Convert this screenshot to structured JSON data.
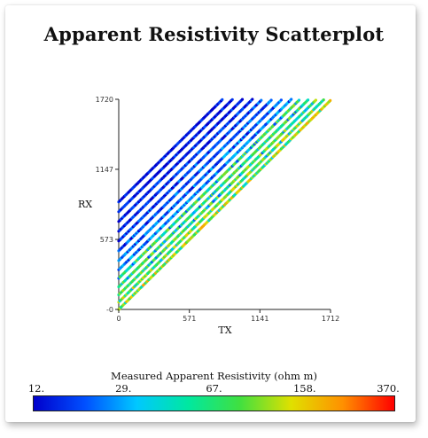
{
  "title": "Apparent Resistivity Scatterplot",
  "colorbar": {
    "label": "Measured Apparent Resistivity (ohm m)",
    "ticks": [
      "12.",
      "29.",
      "67.",
      "158.",
      "370."
    ],
    "colors": [
      "#0000cc",
      "#0050ff",
      "#00c8ff",
      "#00e8a0",
      "#40e040",
      "#e0e000",
      "#ff9000",
      "#ff0000"
    ]
  },
  "chart_data": {
    "type": "scatter",
    "title": "Apparent Resistivity Scatterplot",
    "xlabel": "TX",
    "ylabel": "RX",
    "xlim": [
      0,
      1712
    ],
    "ylim": [
      0,
      1720
    ],
    "xticks": [
      "0",
      "571",
      "1141",
      "1712"
    ],
    "yticks": [
      "-0",
      "573",
      "1147",
      "1720"
    ],
    "color_scale": {
      "min": 12,
      "max": 370,
      "log": true
    },
    "grid": false,
    "bands": [
      {
        "offset": 0,
        "value": 55
      },
      {
        "offset": 60,
        "value": 45
      },
      {
        "offset": 120,
        "value": 35
      },
      {
        "offset": 185,
        "value": 30
      },
      {
        "offset": 255,
        "value": 30
      },
      {
        "offset": 325,
        "value": 25
      },
      {
        "offset": 400,
        "value": 22
      },
      {
        "offset": 480,
        "value": 20
      },
      {
        "offset": 560,
        "value": 18
      },
      {
        "offset": 640,
        "value": 16
      },
      {
        "offset": 720,
        "value": 15
      },
      {
        "offset": 800,
        "value": 14
      },
      {
        "offset": 880,
        "value": 13
      }
    ]
  }
}
